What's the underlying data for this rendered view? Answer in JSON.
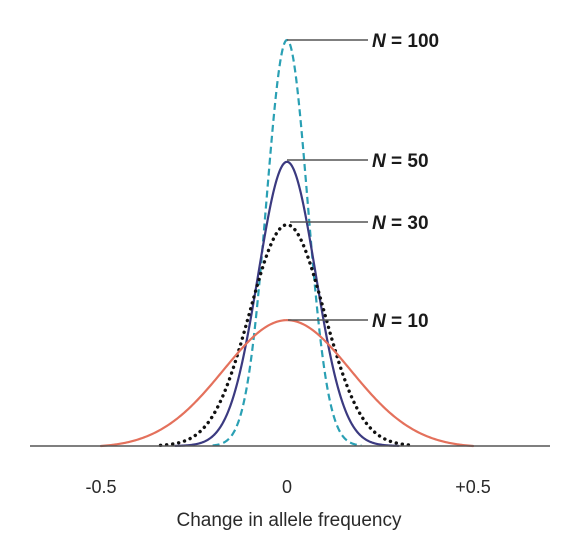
{
  "chart_data": {
    "type": "line",
    "title": "",
    "xlabel": "Change in allele frequency",
    "ylabel": "",
    "xlim": [
      -0.72,
      0.72
    ],
    "x_ticks": [
      {
        "value": -0.5,
        "label": "-0.5"
      },
      {
        "value": 0,
        "label": "0"
      },
      {
        "value": 0.5,
        "label": "+0.5"
      }
    ],
    "grid": false,
    "legend": "inline labels at right of peaks",
    "series": [
      {
        "label_prefix": "N",
        "label_value": "= 100",
        "peak": 1.0,
        "sd": 0.055,
        "range": [
          -0.2,
          0.2
        ],
        "color": "#2aa0b4",
        "style": "dashed"
      },
      {
        "label_prefix": "N",
        "label_value": "= 50",
        "peak": 0.7,
        "sd": 0.077,
        "range": [
          -0.3,
          0.3
        ],
        "color": "#3b3a80",
        "style": "solid"
      },
      {
        "label_prefix": "N",
        "label_value": "= 30",
        "peak": 0.545,
        "sd": 0.1,
        "range": [
          -0.34,
          0.34
        ],
        "color": "#111111",
        "style": "dotted"
      },
      {
        "label_prefix": "N",
        "label_value": "= 10",
        "peak": 0.31,
        "sd": 0.17,
        "range": [
          -0.5,
          0.5
        ],
        "color": "#e4715c",
        "style": "solid"
      }
    ]
  }
}
